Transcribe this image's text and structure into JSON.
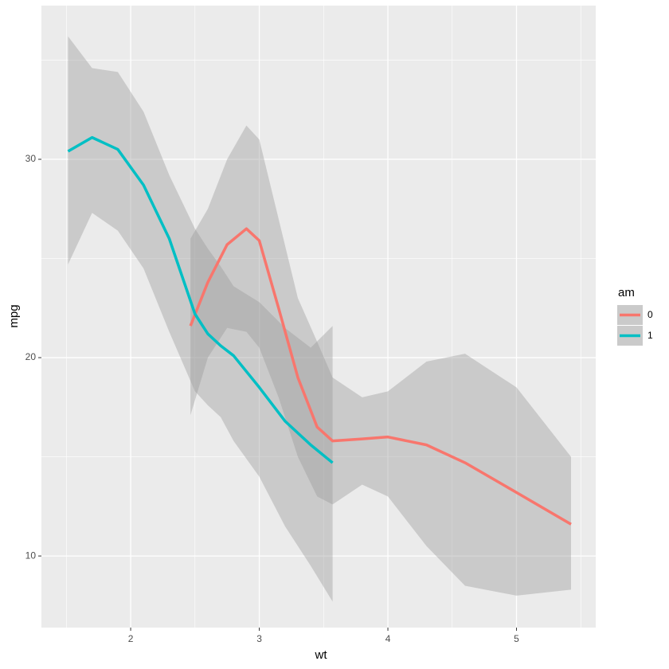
{
  "chart_data": {
    "type": "line",
    "x_label": "wt",
    "y_label": "mpg",
    "xlim": [
      1.306,
      5.616
    ],
    "ylim": [
      6.39,
      37.75
    ],
    "xticks": [
      2,
      3,
      4,
      5
    ],
    "yticks": [
      10,
      20,
      30
    ],
    "grid": true,
    "minor_grid": true,
    "band_color": "#999999",
    "legend_title": "am",
    "legend_position": "right",
    "series": [
      {
        "name": "0",
        "color": "#F8766D",
        "x": [
          2.465,
          2.6,
          2.75,
          2.9,
          3.0,
          3.15,
          3.3,
          3.45,
          3.57,
          3.8,
          4.0,
          4.3,
          4.6,
          5.0,
          5.424
        ],
        "values": [
          21.6,
          23.8,
          25.7,
          26.5,
          25.9,
          22.5,
          19.0,
          16.5,
          15.8,
          15.9,
          16.0,
          15.6,
          14.7,
          13.2,
          11.6
        ],
        "upper": [
          26.0,
          27.5,
          30.0,
          31.7,
          31.0,
          27.0,
          23.0,
          20.8,
          19.0,
          18.0,
          18.3,
          19.8,
          20.2,
          18.5,
          15.0
        ],
        "lower": [
          17.1,
          20.0,
          21.5,
          21.3,
          20.5,
          18.0,
          15.0,
          13.0,
          12.6,
          13.6,
          13.0,
          10.5,
          8.5,
          8.0,
          8.3
        ]
      },
      {
        "name": "1",
        "color": "#00BFC4",
        "x": [
          1.513,
          1.7,
          1.9,
          2.1,
          2.3,
          2.5,
          2.6,
          2.7,
          2.8,
          3.0,
          3.2,
          3.4,
          3.57
        ],
        "values": [
          30.4,
          31.1,
          30.5,
          28.7,
          26.0,
          22.2,
          21.2,
          20.6,
          20.1,
          18.5,
          16.8,
          15.6,
          14.7
        ],
        "upper": [
          36.2,
          34.6,
          34.4,
          32.4,
          29.2,
          26.5,
          25.5,
          24.6,
          23.6,
          22.8,
          21.5,
          20.5,
          21.6
        ],
        "lower": [
          24.7,
          27.3,
          26.4,
          24.5,
          21.3,
          18.3,
          17.6,
          17.0,
          15.8,
          14.0,
          11.5,
          9.5,
          7.7
        ]
      }
    ]
  }
}
